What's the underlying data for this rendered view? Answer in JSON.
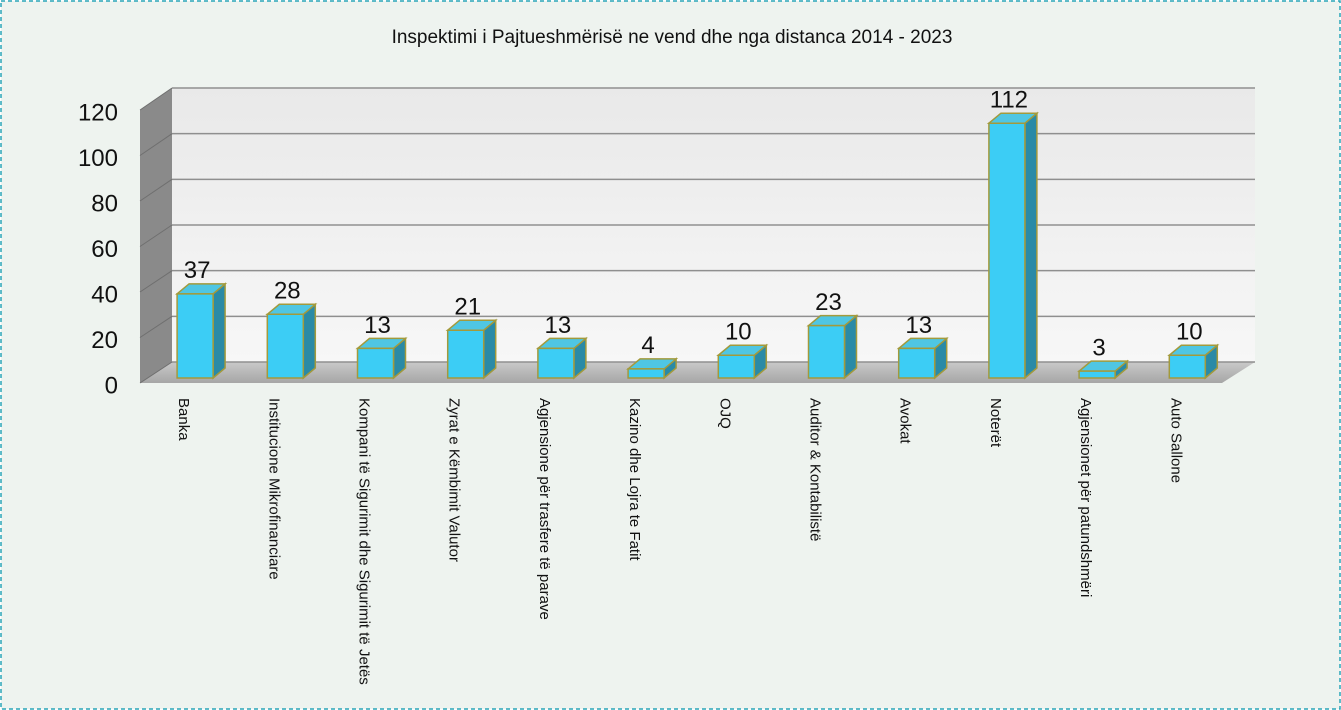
{
  "chart_data": {
    "type": "bar3d",
    "title": "Inspektimi i Pajtueshmërisë ne vend dhe nga distanca 2014 - 2023",
    "categories": [
      "Banka",
      "Institucione Mikrofinanciare",
      "Kompani të Sigurimit dhe  Sigurimit të Jetës",
      "Zyrat e Këmbimit Valutor",
      "Agjensione për trasfere të parave",
      "Kazino dhe Lojra te Fatit",
      "OJQ",
      "Auditor & Kontabilistë",
      "Avokat",
      "Noterët",
      "Agjensionet për patundshmëri",
      "Auto Sallone"
    ],
    "values": [
      37,
      28,
      13,
      21,
      13,
      4,
      10,
      23,
      13,
      112,
      3,
      10
    ],
    "color": "#3ccdf5",
    "ylim": [
      0,
      120
    ],
    "yticks": [
      0,
      20,
      40,
      60,
      80,
      100,
      120
    ],
    "grid": true
  }
}
